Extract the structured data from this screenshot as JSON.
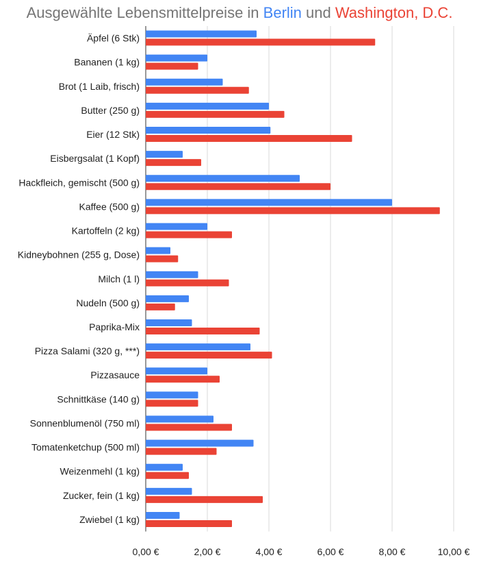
{
  "title": {
    "prefix": "Ausgewählte Lebensmittelpreise in ",
    "series1": "Berlin",
    "middle": " und ",
    "series2": "Washington, D.C."
  },
  "colors": {
    "berlin": "#4285f4",
    "washington": "#ea4335",
    "grid": "#d9d9d9",
    "title": "#757575"
  },
  "chart_data": {
    "type": "bar",
    "orientation": "horizontal",
    "title": "Ausgewählte Lebensmittelpreise in Berlin und Washington, D.C.",
    "xlabel": "",
    "ylabel": "",
    "xlim": [
      0,
      10
    ],
    "ticks": [
      0,
      2,
      4,
      6,
      8,
      10
    ],
    "tick_labels": [
      "0,00 €",
      "2,00 €",
      "4,00 €",
      "6,00 €",
      "8,00 €",
      "10,00 €"
    ],
    "grid": true,
    "legend": "none (series named in title)",
    "categories": [
      "Äpfel (6 Stk)",
      "Bananen (1 kg)",
      "Brot (1 Laib, frisch)",
      "Butter (250 g)",
      "Eier (12 Stk)",
      "Eisbergsalat (1 Kopf)",
      "Hackfleich, gemischt (500 g)",
      "Kaffee (500 g)",
      "Kartoffeln (2 kg)",
      "Kidneybohnen (255 g, Dose)",
      "Milch (1 l)",
      "Nudeln (500 g)",
      "Paprika-Mix",
      "Pizza Salami (320 g, ***)",
      "Pizzasauce",
      "Schnittkäse (140 g)",
      "Sonnenblumenöl (750 ml)",
      "Tomatenketchup (500 ml)",
      "Weizenmehl (1 kg)",
      "Zucker, fein (1 kg)",
      "Zwiebel (1 kg)"
    ],
    "series": [
      {
        "name": "Berlin",
        "values": [
          3.6,
          2.0,
          2.5,
          4.0,
          4.05,
          1.2,
          5.0,
          8.0,
          2.0,
          0.8,
          1.7,
          1.4,
          1.5,
          3.4,
          2.0,
          1.7,
          2.2,
          3.5,
          1.2,
          1.5,
          1.1
        ]
      },
      {
        "name": "Washington, D.C.",
        "values": [
          7.45,
          1.7,
          3.35,
          4.5,
          6.7,
          1.8,
          6.0,
          9.55,
          2.8,
          1.05,
          2.7,
          0.95,
          3.7,
          4.1,
          2.4,
          1.7,
          2.8,
          2.3,
          1.4,
          3.8,
          2.8
        ]
      }
    ]
  }
}
